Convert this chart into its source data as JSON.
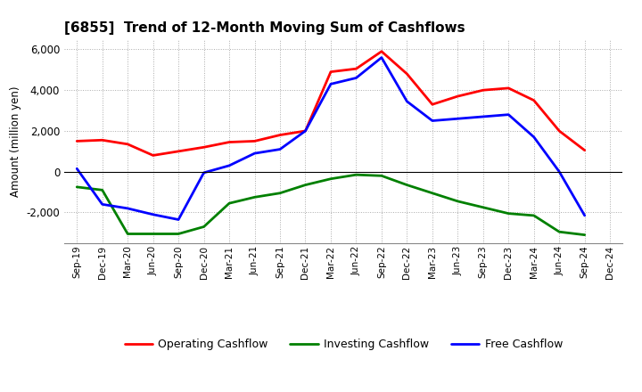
{
  "title": "[6855]  Trend of 12-Month Moving Sum of Cashflows",
  "ylabel": "Amount (million yen)",
  "background_color": "#ffffff",
  "grid_color": "#aaaaaa",
  "x_labels": [
    "Sep-19",
    "Dec-19",
    "Mar-20",
    "Jun-20",
    "Sep-20",
    "Dec-20",
    "Mar-21",
    "Jun-21",
    "Sep-21",
    "Dec-21",
    "Mar-22",
    "Jun-22",
    "Sep-22",
    "Dec-22",
    "Mar-23",
    "Jun-23",
    "Sep-23",
    "Dec-23",
    "Mar-24",
    "Jun-24",
    "Sep-24",
    "Dec-24"
  ],
  "operating_cashflow": [
    1500,
    1550,
    1350,
    800,
    1000,
    1200,
    1450,
    1500,
    1800,
    2000,
    4900,
    5050,
    5900,
    4800,
    3300,
    3700,
    4000,
    4100,
    3500,
    2000,
    1050,
    null
  ],
  "investing_cashflow": [
    -750,
    -900,
    -3050,
    -3050,
    -3050,
    -2700,
    -1550,
    -1250,
    -1050,
    -650,
    -350,
    -150,
    -200,
    -650,
    -1050,
    -1450,
    -1750,
    -2050,
    -2150,
    -2950,
    -3100,
    null
  ],
  "free_cashflow": [
    150,
    -1600,
    -1800,
    -2100,
    -2350,
    -50,
    300,
    900,
    1100,
    2000,
    4300,
    4600,
    5600,
    3450,
    2500,
    2600,
    2700,
    2800,
    1700,
    0,
    -2150,
    null
  ],
  "ylim": [
    -3500,
    6500
  ],
  "yticks": [
    -2000,
    0,
    2000,
    4000,
    6000
  ],
  "operating_color": "#ff0000",
  "investing_color": "#008000",
  "free_color": "#0000ff",
  "line_width": 2.0
}
